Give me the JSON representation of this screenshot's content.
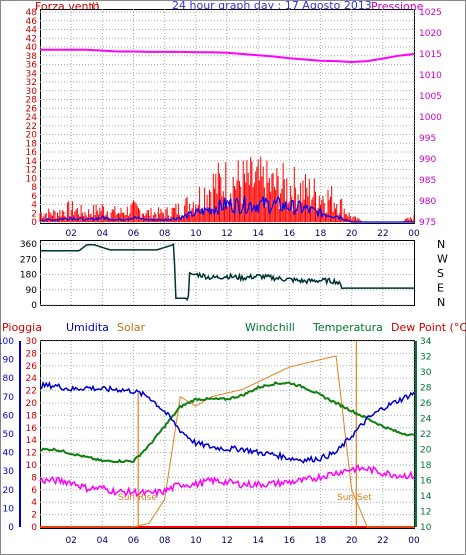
{
  "title": "24 hour graph day : 17 Agosto 2013",
  "colors": {
    "wind": "#ff0000",
    "gust": "#0000ff",
    "pressure": "#ff00ff",
    "direction": "#003333",
    "humidity": "#0000cc",
    "solar": "#e08020",
    "windchill": "#007733",
    "temperature": "#108010",
    "dewpoint": "#ff00ff",
    "rain": "#ff0000",
    "grid": "#aaaaaa"
  },
  "chart_data": [
    {
      "type": "line",
      "name": "wind-pressure",
      "left_label": "Forza vento",
      "left_unit": "()",
      "right_label": "Pressione",
      "left_ticks": [
        "0",
        "2",
        "4",
        "6",
        "8",
        "10",
        "12",
        "14",
        "16",
        "18",
        "20",
        "22",
        "24",
        "26",
        "28",
        "30",
        "32",
        "34",
        "36",
        "38",
        "40",
        "42",
        "44",
        "46",
        "48"
      ],
      "right_ticks": [
        "975",
        "980",
        "985",
        "990",
        "995",
        "1000",
        "1005",
        "1010",
        "1015",
        "1020",
        "1025"
      ],
      "x_ticks": [
        "02",
        "04",
        "06",
        "08",
        "10",
        "12",
        "14",
        "16",
        "18",
        "20",
        "22",
        "00"
      ],
      "ylim_left": [
        0,
        48
      ],
      "ylim_right": [
        975,
        1025
      ],
      "x": [
        0,
        1,
        2,
        3,
        4,
        5,
        6,
        7,
        8,
        9,
        10,
        11,
        12,
        13,
        14,
        15,
        16,
        17,
        18,
        19,
        20,
        21,
        22,
        23,
        24
      ],
      "series": [
        {
          "key": "wind",
          "values": [
            2,
            2,
            3,
            2,
            3,
            2,
            3,
            2,
            2,
            3,
            5,
            8,
            9,
            9,
            9,
            8,
            8,
            7,
            6,
            5,
            1,
            0,
            0,
            0,
            1
          ]
        },
        {
          "key": "gust",
          "values": [
            0.5,
            0.5,
            1,
            0.5,
            1,
            0.5,
            1,
            0.5,
            0.5,
            1,
            2,
            3,
            4,
            4,
            4,
            4,
            3.5,
            3,
            2,
            1.5,
            0,
            0,
            0,
            0,
            0
          ]
        },
        {
          "key": "pressure",
          "values": [
            1016,
            1016,
            1016,
            1016,
            1015.8,
            1015.6,
            1015.6,
            1015.5,
            1015.5,
            1015.5,
            1015.4,
            1015.4,
            1015.3,
            1015.0,
            1014.7,
            1014.4,
            1014.0,
            1013.7,
            1013.4,
            1013.3,
            1013.1,
            1013.3,
            1013.9,
            1014.6,
            1015.0
          ]
        }
      ]
    },
    {
      "type": "line",
      "name": "wind-direction",
      "left_ticks": [
        "0",
        "90",
        "180",
        "270",
        "360"
      ],
      "right_ticks": [
        "N",
        "W",
        "S",
        "E",
        "N"
      ],
      "ylim": [
        0,
        360
      ],
      "x": [
        0,
        1.5,
        2.5,
        3.0,
        3.5,
        4.5,
        5.5,
        6.0,
        7.5,
        8.5,
        8.6,
        8.7,
        9.0,
        9.4,
        9.5,
        9.6,
        9.8,
        10.2,
        11,
        12,
        13,
        14,
        15,
        16,
        17,
        18,
        19,
        19.5,
        20,
        24
      ],
      "values": [
        320,
        320,
        320,
        355,
        355,
        325,
        325,
        325,
        325,
        355,
        360,
        40,
        40,
        40,
        20,
        190,
        180,
        180,
        160,
        170,
        160,
        170,
        160,
        150,
        140,
        145,
        140,
        100,
        100,
        100
      ]
    },
    {
      "type": "line",
      "name": "atmosphere",
      "legend": [
        "Pioggia",
        "Umidita",
        "Solar",
        "Windchill",
        "Temperatura",
        "Dew Point (°C)"
      ],
      "humidity_ticks": [
        "0",
        "10",
        "20",
        "30",
        "40",
        "50",
        "60",
        "70",
        "80",
        "90",
        "100"
      ],
      "rain_ticks": [
        "0",
        "2",
        "4",
        "6",
        "8",
        "10",
        "12",
        "14",
        "16",
        "18",
        "20",
        "22",
        "24",
        "26",
        "28",
        "30"
      ],
      "temp_ticks": [
        "10",
        "12",
        "14",
        "16",
        "18",
        "20",
        "22",
        "24",
        "26",
        "28",
        "30",
        "32",
        "34"
      ],
      "x_ticks": [
        "02",
        "04",
        "06",
        "08",
        "10",
        "12",
        "14",
        "16",
        "18",
        "20",
        "22",
        "00"
      ],
      "annotations": [
        "Sun Rise",
        "Sun Set"
      ],
      "sunrise": 6.3,
      "sunset": 20.3,
      "ylim_humidity": [
        0,
        100
      ],
      "ylim_rain": [
        0,
        30
      ],
      "ylim_temperature": [
        10,
        34
      ],
      "x": [
        0,
        1,
        2,
        3,
        4,
        5,
        6,
        7,
        8,
        9,
        10,
        11,
        12,
        13,
        14,
        15,
        16,
        17,
        18,
        19,
        20,
        21,
        22,
        23,
        24
      ],
      "series": [
        {
          "key": "humidity",
          "values": [
            76,
            76,
            74,
            75,
            74,
            74,
            73,
            70,
            62,
            52,
            45,
            43,
            42,
            42,
            40,
            39,
            37,
            36,
            37,
            40,
            49,
            58,
            64,
            68,
            72
          ]
        },
        {
          "key": "solar",
          "values": [
            0,
            0,
            0,
            0,
            0,
            0,
            0,
            2,
            15,
            70,
            65,
            70,
            72,
            74,
            78,
            82,
            86,
            88,
            90,
            92,
            20,
            0,
            0,
            0,
            0
          ]
        },
        {
          "key": "temperature",
          "values": [
            20,
            20,
            19.5,
            19,
            18.5,
            18.5,
            18.5,
            20.5,
            23,
            25.5,
            26.5,
            26.5,
            26.5,
            27,
            28,
            28.5,
            28.6,
            28,
            27,
            26,
            25,
            24,
            23,
            22.2,
            21.8
          ]
        },
        {
          "key": "dewpoint",
          "values": [
            16,
            16,
            15.8,
            15,
            15,
            14.5,
            14.5,
            14.3,
            14.6,
            15.5,
            15.5,
            16,
            15.8,
            15.5,
            15.5,
            15.6,
            15.8,
            16,
            16.5,
            17,
            17.5,
            17.5,
            17,
            16.7,
            16.6
          ]
        }
      ]
    }
  ]
}
